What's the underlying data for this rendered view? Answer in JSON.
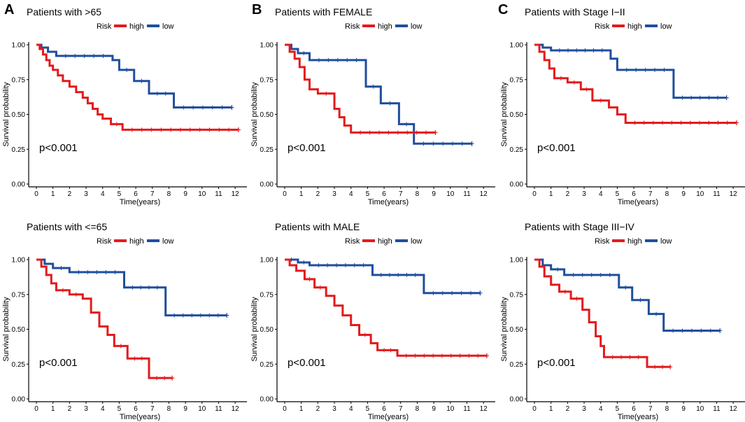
{
  "panel_letters": [
    "A",
    "B",
    "C"
  ],
  "colors": {
    "high": "#e41a1c",
    "low": "#1f4e9e"
  },
  "chart_data": [
    {
      "type": "line",
      "title": "Patients with >65",
      "legend_title": "Risk",
      "legend_labels": [
        "high",
        "low"
      ],
      "xlabel": "Time(years)",
      "ylabel": "Survival probability",
      "xticks": [
        0,
        1,
        2,
        3,
        4,
        5,
        6,
        7,
        8,
        9,
        10,
        11,
        12
      ],
      "yticks": [
        "0.00",
        "0.25",
        "0.50",
        "0.75",
        "1.00"
      ],
      "xlim": [
        0,
        12.5
      ],
      "ylim": [
        0,
        1
      ],
      "pvalue": "p<0.001",
      "series": [
        {
          "name": "high",
          "x": [
            0,
            0.2,
            0.4,
            0.6,
            0.8,
            1.0,
            1.3,
            1.6,
            2.0,
            2.4,
            2.8,
            3.1,
            3.4,
            3.7,
            4.0,
            4.5,
            5.2,
            12.2
          ],
          "y": [
            1.0,
            0.97,
            0.93,
            0.89,
            0.85,
            0.82,
            0.78,
            0.74,
            0.7,
            0.66,
            0.62,
            0.58,
            0.54,
            0.5,
            0.47,
            0.43,
            0.39,
            0.39
          ]
        },
        {
          "name": "low",
          "x": [
            0,
            0.3,
            0.7,
            1.2,
            4.6,
            5.0,
            5.9,
            6.8,
            8.3,
            11.8
          ],
          "y": [
            1.0,
            0.98,
            0.95,
            0.92,
            0.89,
            0.82,
            0.74,
            0.65,
            0.55,
            0.55
          ]
        }
      ]
    },
    {
      "type": "line",
      "title": "Patients with FEMALE",
      "legend_title": "Risk",
      "legend_labels": [
        "high",
        "low"
      ],
      "xlabel": "Time(years)",
      "ylabel": "Survival probability",
      "xticks": [
        0,
        1,
        2,
        3,
        4,
        5,
        6,
        7,
        8,
        9,
        10,
        11,
        12
      ],
      "yticks": [
        "0.00",
        "0.25",
        "0.50",
        "0.75",
        "1.00"
      ],
      "xlim": [
        0,
        12.5
      ],
      "ylim": [
        0,
        1
      ],
      "pvalue": "p<0.001",
      "series": [
        {
          "name": "high",
          "x": [
            0,
            0.3,
            0.6,
            0.9,
            1.2,
            1.5,
            2.0,
            3.0,
            3.3,
            3.6,
            4.0,
            9.1
          ],
          "y": [
            1.0,
            0.95,
            0.9,
            0.84,
            0.75,
            0.68,
            0.65,
            0.54,
            0.48,
            0.42,
            0.37,
            0.37
          ]
        },
        {
          "name": "low",
          "x": [
            0,
            0.4,
            0.8,
            1.5,
            4.9,
            5.8,
            6.9,
            7.8,
            11.3
          ],
          "y": [
            1.0,
            0.97,
            0.94,
            0.89,
            0.7,
            0.58,
            0.43,
            0.29,
            0.29
          ]
        }
      ]
    },
    {
      "type": "line",
      "title": "Patients with Stage I−II",
      "legend_title": "Risk",
      "legend_labels": [
        "high",
        "low"
      ],
      "xlabel": "Time(years)",
      "ylabel": "Survival probability",
      "xticks": [
        0,
        1,
        2,
        3,
        4,
        5,
        6,
        7,
        8,
        9,
        10,
        11,
        12
      ],
      "yticks": [
        "0.00",
        "0.25",
        "0.50",
        "0.75",
        "1.00"
      ],
      "xlim": [
        0,
        12.5
      ],
      "ylim": [
        0,
        1
      ],
      "pvalue": "p<0.001",
      "series": [
        {
          "name": "high",
          "x": [
            0,
            0.3,
            0.6,
            0.9,
            1.2,
            2.0,
            2.8,
            3.5,
            4.5,
            5.0,
            5.5,
            12.2
          ],
          "y": [
            1.0,
            0.95,
            0.89,
            0.83,
            0.76,
            0.73,
            0.68,
            0.6,
            0.55,
            0.5,
            0.44,
            0.44
          ]
        },
        {
          "name": "low",
          "x": [
            0,
            0.5,
            1.0,
            4.6,
            5.0,
            8.4,
            11.6
          ],
          "y": [
            1.0,
            0.98,
            0.96,
            0.9,
            0.82,
            0.62,
            0.62
          ]
        }
      ]
    },
    {
      "type": "line",
      "title": "Patients with <=65",
      "legend_title": "Risk",
      "legend_labels": [
        "high",
        "low"
      ],
      "xlabel": "Time(years)",
      "ylabel": "Survival probability",
      "xticks": [
        0,
        1,
        2,
        3,
        4,
        5,
        6,
        7,
        8,
        9,
        10,
        11,
        12
      ],
      "yticks": [
        "0.00",
        "0.25",
        "0.50",
        "0.75",
        "1.00"
      ],
      "xlim": [
        0,
        12.5
      ],
      "ylim": [
        0,
        1
      ],
      "pvalue": "p<0.001",
      "series": [
        {
          "name": "high",
          "x": [
            0,
            0.3,
            0.6,
            0.9,
            1.2,
            2.0,
            2.8,
            3.3,
            3.8,
            4.3,
            4.7,
            5.5,
            6.8,
            8.2
          ],
          "y": [
            1.0,
            0.95,
            0.89,
            0.83,
            0.78,
            0.75,
            0.72,
            0.62,
            0.52,
            0.46,
            0.38,
            0.29,
            0.15,
            0.15
          ]
        },
        {
          "name": "low",
          "x": [
            0,
            0.5,
            1.0,
            2.0,
            5.3,
            7.8,
            11.5
          ],
          "y": [
            1.0,
            0.97,
            0.94,
            0.91,
            0.8,
            0.6,
            0.6
          ]
        }
      ]
    },
    {
      "type": "line",
      "title": "Patients with MALE",
      "legend_title": "Risk",
      "legend_labels": [
        "high",
        "low"
      ],
      "xlabel": "Time(years)",
      "ylabel": "Survival probability",
      "xticks": [
        0,
        1,
        2,
        3,
        4,
        5,
        6,
        7,
        8,
        9,
        10,
        11,
        12
      ],
      "yticks": [
        "0.00",
        "0.25",
        "0.50",
        "0.75",
        "1.00"
      ],
      "xlim": [
        0,
        12.5
      ],
      "ylim": [
        0,
        1
      ],
      "pvalue": "p<0.001",
      "series": [
        {
          "name": "high",
          "x": [
            0,
            0.3,
            0.7,
            1.2,
            1.8,
            2.5,
            3.0,
            3.5,
            4.0,
            4.5,
            5.2,
            5.6,
            6.8,
            12.2
          ],
          "y": [
            1.0,
            0.96,
            0.92,
            0.86,
            0.8,
            0.74,
            0.67,
            0.6,
            0.53,
            0.46,
            0.4,
            0.35,
            0.31,
            0.31
          ]
        },
        {
          "name": "low",
          "x": [
            0,
            0.8,
            1.5,
            5.3,
            8.4,
            11.8
          ],
          "y": [
            1.0,
            0.98,
            0.96,
            0.89,
            0.76,
            0.76
          ]
        }
      ]
    },
    {
      "type": "line",
      "title": "Patients with Stage III−IV",
      "legend_title": "Risk",
      "legend_labels": [
        "high",
        "low"
      ],
      "xlabel": "Time(years)",
      "ylabel": "Survival probability",
      "xticks": [
        0,
        1,
        2,
        3,
        4,
        5,
        6,
        7,
        8,
        9,
        10,
        11,
        12
      ],
      "yticks": [
        "0.00",
        "0.25",
        "0.50",
        "0.75",
        "1.00"
      ],
      "xlim": [
        0,
        12.5
      ],
      "ylim": [
        0,
        1
      ],
      "pvalue": "p<0.001",
      "series": [
        {
          "name": "high",
          "x": [
            0,
            0.3,
            0.6,
            1.0,
            1.5,
            2.2,
            2.9,
            3.3,
            3.7,
            4.0,
            4.2,
            6.8,
            8.2
          ],
          "y": [
            1.0,
            0.95,
            0.88,
            0.82,
            0.77,
            0.72,
            0.64,
            0.55,
            0.45,
            0.38,
            0.3,
            0.23,
            0.23
          ]
        },
        {
          "name": "low",
          "x": [
            0,
            0.5,
            1.0,
            1.8,
            5.1,
            5.9,
            6.9,
            7.8,
            11.2
          ],
          "y": [
            1.0,
            0.96,
            0.93,
            0.89,
            0.8,
            0.71,
            0.61,
            0.49,
            0.49
          ]
        }
      ]
    }
  ]
}
